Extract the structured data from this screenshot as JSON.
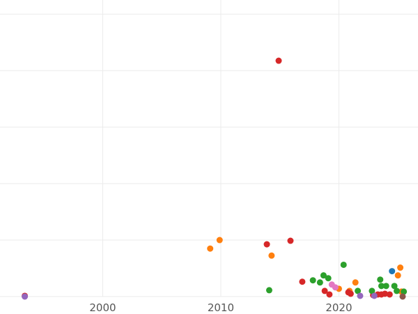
{
  "chart_data": {
    "type": "scatter",
    "title": "",
    "xlabel": "",
    "ylabel": "",
    "xlim": [
      1991.3,
      2026.7
    ],
    "ylim": [
      0,
      420
    ],
    "x_ticks": [
      2000,
      2010,
      2020
    ],
    "x_tick_labels": [
      "2000",
      "2010",
      "2020"
    ],
    "y_gridlines": [
      0,
      80,
      160,
      240,
      320,
      400
    ],
    "grid": true,
    "legend": "none",
    "colors": {
      "orange": "#ff7f0e",
      "red": "#d62728",
      "green": "#2ca02c",
      "blue": "#1f77b4",
      "purple": "#9467bd",
      "pink": "#e377c2",
      "brown": "#8c564b"
    },
    "series": [
      {
        "color": "#ff7f0e",
        "points": [
          {
            "x": 2009.1,
            "y": 68
          },
          {
            "x": 2009.9,
            "y": 80
          },
          {
            "x": 2014.3,
            "y": 58
          },
          {
            "x": 2020.0,
            "y": 11
          },
          {
            "x": 2020.9,
            "y": 8
          },
          {
            "x": 2021.4,
            "y": 20
          },
          {
            "x": 2025.0,
            "y": 30
          },
          {
            "x": 2025.2,
            "y": 41
          },
          {
            "x": 2025.3,
            "y": 7
          }
        ]
      },
      {
        "color": "#d62728",
        "points": [
          {
            "x": 2014.9,
            "y": 334
          },
          {
            "x": 2013.9,
            "y": 74
          },
          {
            "x": 2015.9,
            "y": 79
          },
          {
            "x": 2016.9,
            "y": 21
          },
          {
            "x": 2018.8,
            "y": 8
          },
          {
            "x": 2019.2,
            "y": 3
          },
          {
            "x": 2020.8,
            "y": 6
          },
          {
            "x": 2021.0,
            "y": 4
          },
          {
            "x": 2022.9,
            "y": 2
          },
          {
            "x": 2023.3,
            "y": 3
          },
          {
            "x": 2023.6,
            "y": 3
          },
          {
            "x": 2023.9,
            "y": 4
          },
          {
            "x": 2024.3,
            "y": 3
          },
          {
            "x": 1993.4,
            "y": 1
          }
        ]
      },
      {
        "color": "#2ca02c",
        "points": [
          {
            "x": 2014.1,
            "y": 9
          },
          {
            "x": 2017.8,
            "y": 23
          },
          {
            "x": 2018.4,
            "y": 20
          },
          {
            "x": 2018.7,
            "y": 30
          },
          {
            "x": 2019.1,
            "y": 26
          },
          {
            "x": 2020.4,
            "y": 45
          },
          {
            "x": 2021.6,
            "y": 8
          },
          {
            "x": 2022.8,
            "y": 8
          },
          {
            "x": 2023.5,
            "y": 24
          },
          {
            "x": 2023.6,
            "y": 15
          },
          {
            "x": 2024.0,
            "y": 15
          },
          {
            "x": 2024.7,
            "y": 15
          },
          {
            "x": 2024.9,
            "y": 8
          },
          {
            "x": 2025.5,
            "y": 7
          }
        ]
      },
      {
        "color": "#1f77b4",
        "points": [
          {
            "x": 2024.5,
            "y": 36
          }
        ]
      },
      {
        "color": "#9467bd",
        "points": [
          {
            "x": 1993.4,
            "y": 0
          },
          {
            "x": 2021.8,
            "y": 1
          },
          {
            "x": 2023.0,
            "y": 1
          }
        ]
      },
      {
        "color": "#e377c2",
        "points": [
          {
            "x": 2019.4,
            "y": 17
          },
          {
            "x": 2019.7,
            "y": 13
          }
        ]
      },
      {
        "color": "#8c564b",
        "points": [
          {
            "x": 2025.4,
            "y": 0
          }
        ]
      }
    ]
  }
}
